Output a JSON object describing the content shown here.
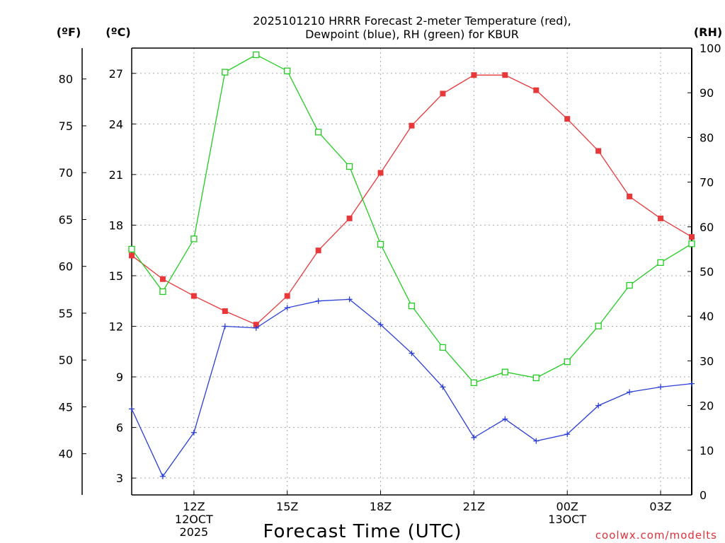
{
  "chart_data": {
    "type": "line",
    "title": [
      "2025101210 HRRR Forecast 2-meter Temperature (red),",
      "Dewpoint (blue), RH (green) for KBUR"
    ],
    "xlabel": "Forecast Time (UTC)",
    "credit": "coolwx.com/modelts",
    "units": {
      "fahrenheit": "(ºF)",
      "celsius": "(ºC)",
      "rh": "(RH)"
    },
    "x_hours": [
      10,
      11,
      12,
      13,
      14,
      15,
      16,
      17,
      18,
      19,
      20,
      21,
      22,
      23,
      24,
      25,
      26,
      27,
      28
    ],
    "x_range": [
      10,
      28
    ],
    "x_ticks": [
      {
        "hour": 12,
        "lines": [
          "12Z",
          "12OCT",
          "2025"
        ]
      },
      {
        "hour": 15,
        "lines": [
          "15Z"
        ]
      },
      {
        "hour": 18,
        "lines": [
          "18Z"
        ]
      },
      {
        "hour": 21,
        "lines": [
          "21Z"
        ]
      },
      {
        "hour": 24,
        "lines": [
          "00Z",
          "13OCT"
        ]
      },
      {
        "hour": 27,
        "lines": [
          "03Z"
        ]
      }
    ],
    "celsius_axis": {
      "range": [
        2,
        28.5
      ],
      "ticks": [
        3,
        6,
        9,
        12,
        15,
        18,
        21,
        24,
        27
      ]
    },
    "fahrenheit_axis": {
      "ticks": [
        40,
        45,
        50,
        55,
        60,
        65,
        70,
        75,
        80
      ]
    },
    "rh_axis": {
      "range": [
        0,
        100
      ],
      "ticks": [
        0,
        10,
        20,
        30,
        40,
        50,
        60,
        70,
        80,
        90,
        100
      ]
    },
    "series": [
      {
        "name": "Temperature",
        "unit": "C",
        "color": "#e8383a",
        "marker": "square-filled",
        "values": [
          16.2,
          14.8,
          13.8,
          12.9,
          12.1,
          13.8,
          16.5,
          18.4,
          21.1,
          23.9,
          25.8,
          26.9,
          26.9,
          26.0,
          24.3,
          22.4,
          19.7,
          18.4,
          17.3
        ]
      },
      {
        "name": "Dewpoint",
        "unit": "C",
        "color": "#2a3fd6",
        "marker": "plus",
        "values": [
          7.1,
          3.1,
          5.7,
          12.0,
          11.9,
          13.1,
          13.5,
          13.6,
          12.1,
          10.4,
          8.4,
          5.4,
          6.5,
          5.2,
          5.6,
          7.3,
          8.1,
          8.4,
          8.6
        ]
      },
      {
        "name": "RH",
        "unit": "%",
        "color": "#22cc22",
        "marker": "square-open",
        "values": [
          55,
          45.5,
          57.3,
          94.6,
          98.5,
          94.9,
          81.2,
          73.5,
          56.1,
          42.3,
          33.0,
          25.1,
          27.5,
          26.2,
          29.8,
          37.8,
          46.9,
          52.0,
          56.2
        ]
      }
    ]
  }
}
